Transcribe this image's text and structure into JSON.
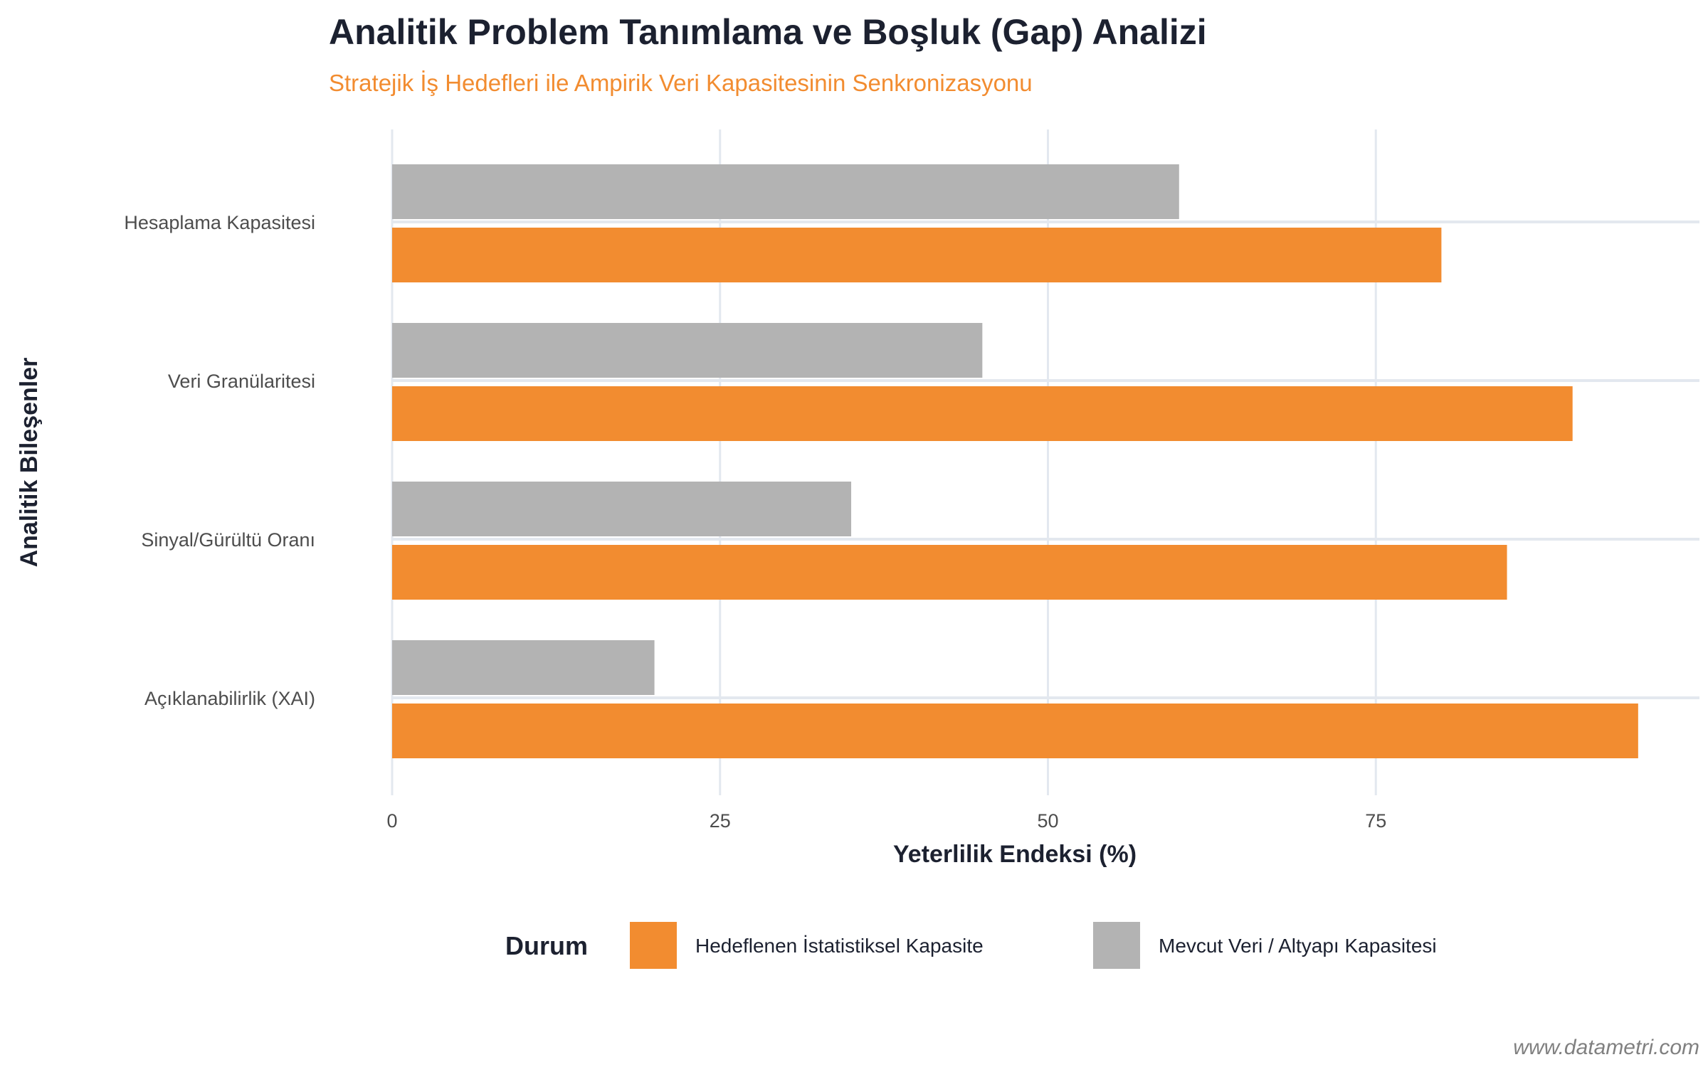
{
  "chart_data": {
    "type": "bar",
    "orientation": "horizontal",
    "title": "Analitik Problem Tanımlama ve Boşluk (Gap) Analizi",
    "subtitle": "Stratejik İş Hedefleri ile Ampirik Veri Kapasitesinin Senkronizasyonu",
    "xlabel": "Yeterlilik Endeksi (%)",
    "ylabel": "Analitik Bileşenler",
    "categories": [
      "Hesaplama Kapasitesi",
      "Veri Granülaritesi",
      "Sinyal/Gürültü Oranı",
      "Açıklanabilirlik (XAI)"
    ],
    "series": [
      {
        "name": "Mevcut Veri / Altyapı Kapasitesi",
        "color": "#b3b3b3",
        "values": [
          60,
          45,
          35,
          20
        ]
      },
      {
        "name": "Hedeflenen İstatistiksel Kapasite",
        "color": "#f28c30",
        "values": [
          80,
          90,
          85,
          95
        ]
      }
    ],
    "xticks": [
      "0",
      "25",
      "50",
      "75"
    ],
    "xtick_values": [
      0,
      25,
      50,
      75
    ],
    "xlim": [
      0,
      100
    ],
    "grid": true,
    "legend": {
      "title": "Durum",
      "position": "bottom",
      "order": [
        "Hedeflenen İstatistiksel Kapasite",
        "Mevcut Veri / Altyapı Kapasitesi"
      ]
    },
    "watermark": "www.datametri.com"
  }
}
